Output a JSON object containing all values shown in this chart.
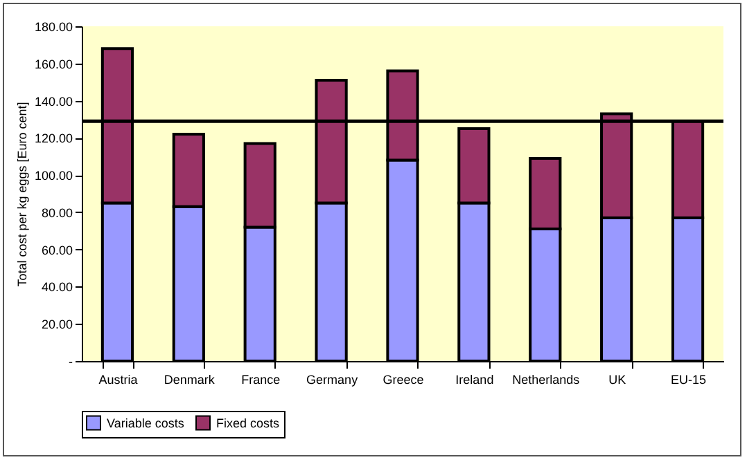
{
  "chart_data": {
    "type": "bar",
    "stacked": true,
    "categories": [
      "Austria",
      "Denmark",
      "France",
      "Germany",
      "Greece",
      "Ireland",
      "Netherlands",
      "UK",
      "EU-15"
    ],
    "series": [
      {
        "name": "Variable costs",
        "color": "#9999ff",
        "values": [
          85,
          83,
          72,
          85,
          108,
          85,
          71,
          77,
          77
        ]
      },
      {
        "name": "Fixed costs",
        "color": "#993366",
        "values": [
          83,
          39,
          45,
          66,
          48,
          40,
          38,
          56,
          52
        ]
      }
    ],
    "ylabel": "Total cost per kg eggs [Euro cent]",
    "ylim": [
      0,
      180
    ],
    "yticks": [
      {
        "value": 0,
        "label": "-"
      },
      {
        "value": 20,
        "label": "20.00"
      },
      {
        "value": 40,
        "label": "40.00"
      },
      {
        "value": 60,
        "label": "60.00"
      },
      {
        "value": 80,
        "label": "80.00"
      },
      {
        "value": 100,
        "label": "100.00"
      },
      {
        "value": 120,
        "label": "120.00"
      },
      {
        "value": 140,
        "label": "140.00"
      },
      {
        "value": 160,
        "label": "160.00"
      },
      {
        "value": 180,
        "label": "180.00"
      }
    ],
    "ref_lines": [
      {
        "axis": "y",
        "value": 129,
        "color": "#000000"
      }
    ],
    "legend": "bottom"
  }
}
